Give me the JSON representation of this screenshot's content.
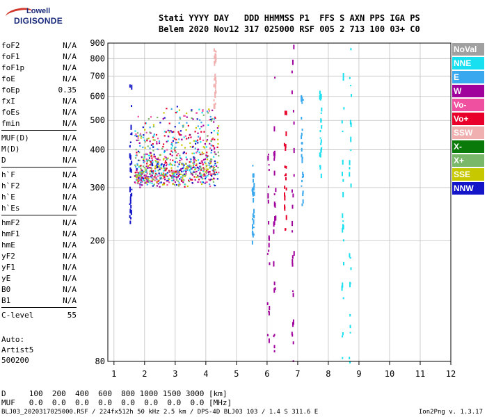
{
  "logo": {
    "line1": "Lowell",
    "line2": "DIGISONDE"
  },
  "header": {
    "line1": "Stati YYYY DAY   DDD HHMMSS P1  FFS S AXN PPS IGA PS",
    "line2": "Belem 2020 Nov12 317 025000 RSF 005 2 713 100 03+ C0"
  },
  "params": {
    "group1": [
      {
        "name": "foF2",
        "value": "N/A"
      },
      {
        "name": "foF1",
        "value": "N/A"
      },
      {
        "name": "foF1p",
        "value": "N/A"
      },
      {
        "name": "foE",
        "value": "N/A"
      },
      {
        "name": "foEp",
        "value": "0.35"
      },
      {
        "name": "fxI",
        "value": "N/A"
      },
      {
        "name": "foEs",
        "value": "N/A"
      },
      {
        "name": "fmin",
        "value": "N/A"
      }
    ],
    "group2": [
      {
        "name": "MUF(D)",
        "value": "N/A"
      },
      {
        "name": "M(D)",
        "value": "N/A"
      },
      {
        "name": "D",
        "value": "N/A"
      }
    ],
    "group3": [
      {
        "name": "h`F",
        "value": "N/A"
      },
      {
        "name": "h`F2",
        "value": "N/A"
      },
      {
        "name": "h`E",
        "value": "N/A"
      },
      {
        "name": "h`Es",
        "value": "N/A"
      }
    ],
    "group4": [
      {
        "name": "hmF2",
        "value": "N/A"
      },
      {
        "name": "hmF1",
        "value": "N/A"
      },
      {
        "name": "hmE",
        "value": "N/A"
      },
      {
        "name": "yF2",
        "value": "N/A"
      },
      {
        "name": "yF1",
        "value": "N/A"
      },
      {
        "name": "yE",
        "value": "N/A"
      },
      {
        "name": "B0",
        "value": "N/A"
      },
      {
        "name": "B1",
        "value": "N/A"
      }
    ],
    "group5": [
      {
        "name": "C-level",
        "value": "55"
      }
    ]
  },
  "auto": {
    "line1": "Auto:",
    "line2": "Artist5",
    "line3": "500200"
  },
  "bottom_table": {
    "d_row": "D     100  200  400  600  800 1000 1500 3000 [km]",
    "muf_row": "MUF   0.0  0.0  0.0  0.0  0.0  0.0  0.0  0.0 [MHz]"
  },
  "footer": {
    "left": "BLJ03_2020317025000.RSF / 224fx512h 50 kHz 2.5 km / DPS-4D BLJ03 103 / 1.4 S 311.6 E",
    "right": "Ion2Png v. 1.3.17"
  },
  "legend": [
    {
      "label": "NoVal",
      "color": "#a0a0a0"
    },
    {
      "label": "NNE",
      "color": "#18e0f0"
    },
    {
      "label": "E",
      "color": "#3aa8ee"
    },
    {
      "label": "W",
      "color": "#a0009c"
    },
    {
      "label": "Vo-",
      "color": "#f050a0"
    },
    {
      "label": "Vo+",
      "color": "#e8002a"
    },
    {
      "label": "SSW",
      "color": "#f0b0b0"
    },
    {
      "label": "X-",
      "color": "#0a7a0a"
    },
    {
      "label": "X+",
      "color": "#78b868"
    },
    {
      "label": "SSE",
      "color": "#c8c800"
    },
    {
      "label": "NNW",
      "color": "#1414c8"
    }
  ],
  "chart_data": {
    "type": "scatter",
    "xlabel": "",
    "ylabel": "",
    "xlim": [
      0.8,
      12
    ],
    "ylim": [
      80,
      900
    ],
    "xticks": [
      1,
      2,
      3,
      4,
      5,
      6,
      7,
      8,
      9,
      10,
      11,
      12
    ],
    "yticks": [
      80,
      200,
      300,
      400,
      500,
      600,
      700,
      800,
      900
    ],
    "grid": true,
    "legend_placement": "right",
    "vertical_traces": [
      {
        "x": 1.55,
        "y_range": [
          220,
          680
        ],
        "color": "#1414c8"
      },
      {
        "x": 6.25,
        "y_range": [
          80,
          900
        ],
        "color": "#a0009c"
      },
      {
        "x": 6.85,
        "y_range": [
          80,
          900
        ],
        "color": "#a0009c"
      },
      {
        "x": 8.48,
        "y_range": [
          80,
          900
        ],
        "color": "#18e0f0"
      },
      {
        "x": 8.72,
        "y_range": [
          80,
          900
        ],
        "color": "#18e0f0"
      },
      {
        "x": 5.55,
        "y_range": [
          200,
          360
        ],
        "color": "#3aa8ee"
      },
      {
        "x": 7.15,
        "y_range": [
          260,
          640
        ],
        "color": "#3aa8ee"
      },
      {
        "x": 4.3,
        "y_range": [
          560,
          880
        ],
        "color": "#f0b0b0"
      },
      {
        "x": 6.05,
        "y_range": [
          80,
          400
        ],
        "color": "#a0009c"
      },
      {
        "x": 7.75,
        "y_range": [
          330,
          640
        ],
        "color": "#18e0f0"
      },
      {
        "x": 6.6,
        "y_range": [
          220,
          560
        ],
        "color": "#e8002a"
      }
    ],
    "clusters": [
      {
        "x_range": [
          1.65,
          4.4
        ],
        "y_range": [
          300,
          540
        ],
        "colors": [
          "#a0009c",
          "#3aa8ee",
          "#e8002a",
          "#78b868",
          "#c8c800",
          "#1414c8",
          "#18e0f0",
          "#f050a0"
        ]
      }
    ]
  }
}
